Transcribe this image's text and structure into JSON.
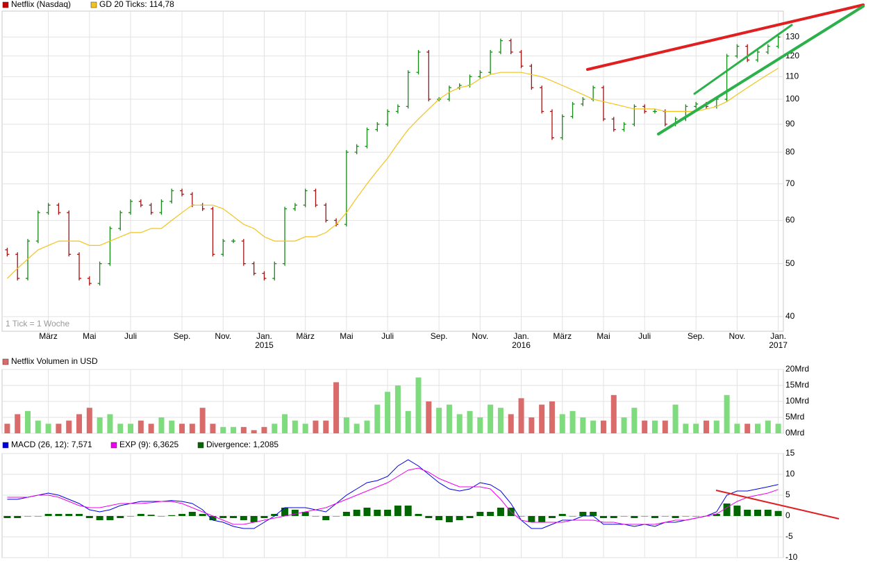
{
  "chart_data": [
    {
      "type": "ohlc",
      "log_scale": true,
      "grid": true,
      "annotation": "1 Tick = 1 Woche",
      "categories": [
        null,
        null,
        null,
        null,
        "März",
        null,
        null,
        null,
        "Mai",
        null,
        null,
        null,
        "Juli",
        null,
        null,
        null,
        null,
        "Sep.",
        null,
        null,
        null,
        "Nov.",
        null,
        null,
        null,
        "Jan.",
        null,
        null,
        null,
        "März",
        null,
        null,
        null,
        "Mai",
        null,
        null,
        null,
        "Juli",
        null,
        null,
        null,
        null,
        "Sep.",
        null,
        null,
        null,
        "Nov.",
        null,
        null,
        null,
        "Jan.",
        null,
        null,
        null,
        "März",
        null,
        null,
        null,
        "Mai",
        null,
        null,
        null,
        "Juli",
        null,
        null,
        null,
        null,
        "Sep.",
        null,
        null,
        null,
        "Nov.",
        null,
        null,
        null,
        "Jan."
      ],
      "years": [
        null,
        null,
        null,
        null,
        null,
        null,
        null,
        null,
        null,
        null,
        null,
        null,
        null,
        null,
        null,
        null,
        null,
        null,
        null,
        null,
        null,
        null,
        null,
        null,
        null,
        "2015",
        null,
        null,
        null,
        null,
        null,
        null,
        null,
        null,
        null,
        null,
        null,
        null,
        null,
        null,
        null,
        null,
        null,
        null,
        null,
        null,
        null,
        null,
        null,
        null,
        "2016",
        null,
        null,
        null,
        null,
        null,
        null,
        null,
        null,
        null,
        null,
        null,
        null,
        null,
        null,
        null,
        null,
        null,
        null,
        null,
        null,
        null,
        null,
        null,
        null,
        "2017"
      ],
      "ylim": [
        37.6,
        145
      ],
      "yticks": [
        40,
        50,
        60,
        70,
        80,
        90,
        100,
        110,
        120,
        130
      ],
      "series": [
        {
          "name": "Netflix (Nasdaq)",
          "color": "#cc0000",
          "up_color": "#138a13",
          "down_color": "#a31010",
          "open": [
            53,
            52,
            47,
            55,
            62,
            64,
            62,
            52,
            47,
            46,
            50,
            58,
            62,
            65,
            64,
            62,
            65,
            68,
            67,
            64,
            63,
            52,
            55,
            55,
            50,
            48,
            47,
            50,
            63,
            64,
            68,
            64,
            60,
            59,
            80,
            82,
            88,
            90,
            95,
            97,
            112,
            122,
            100,
            100,
            105,
            106,
            110,
            112,
            122,
            128,
            122,
            115,
            105,
            95,
            85,
            93,
            98,
            100,
            105,
            92,
            88,
            90,
            97,
            95,
            95,
            90,
            92,
            97,
            98,
            97,
            100,
            120,
            125,
            118,
            122,
            125
          ],
          "close": [
            52,
            47,
            55,
            62,
            64,
            62,
            52,
            47,
            46,
            50,
            58,
            62,
            65,
            64,
            62,
            65,
            68,
            67,
            64,
            63,
            52,
            55,
            55,
            50,
            48,
            47,
            50,
            63,
            64,
            68,
            64,
            60,
            59,
            80,
            82,
            88,
            90,
            95,
            97,
            112,
            122,
            100,
            100,
            105,
            106,
            110,
            112,
            122,
            128,
            122,
            115,
            105,
            95,
            85,
            93,
            98,
            100,
            105,
            92,
            88,
            90,
            97,
            95,
            95,
            90,
            92,
            97,
            98,
            97,
            100,
            120,
            125,
            118,
            122,
            125,
            130
          ]
        },
        {
          "name": "GD 20 Ticks: 114,78",
          "color": "#f2c31c",
          "values": [
            47,
            49,
            51,
            53,
            54,
            55,
            55,
            55,
            54,
            54,
            55,
            56,
            57,
            57,
            58,
            58,
            60,
            62,
            64,
            64,
            64,
            63,
            61,
            59,
            58,
            56,
            55,
            55,
            55,
            56,
            56,
            57,
            59,
            62,
            66,
            70,
            74,
            78,
            83,
            88,
            92,
            96,
            100,
            103,
            105,
            106,
            109,
            111,
            112,
            112,
            112,
            111,
            110,
            108,
            106,
            104,
            102,
            100,
            99,
            98,
            97,
            96,
            96,
            96,
            95,
            95,
            95,
            95,
            96,
            97,
            99,
            102,
            105,
            108,
            111,
            114
          ]
        }
      ]
    },
    {
      "type": "bar",
      "grid": true,
      "ylim": [
        0,
        20
      ],
      "yticks": [
        {
          "value": 0,
          "label": "0Mrd"
        },
        {
          "value": 5,
          "label": "5Mrd"
        },
        {
          "value": 10,
          "label": "10Mrd"
        },
        {
          "value": 15,
          "label": "15Mrd"
        },
        {
          "value": 20,
          "label": "20Mrd"
        }
      ],
      "series": [
        {
          "name": "Netflix Volumen in USD",
          "color": "#d96b6b",
          "up_color": "#7edb7e",
          "down_color": "#d96b6b",
          "values": [
            3,
            6,
            7,
            4,
            3,
            3,
            4,
            6,
            8,
            5,
            6,
            3,
            3,
            4,
            3,
            5,
            4,
            3,
            3,
            8,
            3,
            2,
            2,
            2,
            1,
            2,
            3,
            6,
            4,
            3,
            4,
            4,
            16,
            5,
            3,
            4,
            9,
            13,
            15,
            7,
            17.5,
            10,
            8,
            9,
            6,
            7,
            5,
            9,
            8,
            6,
            11,
            5,
            9,
            10,
            6,
            7,
            5,
            4,
            4,
            12,
            5,
            8,
            4,
            4,
            4,
            9,
            3,
            3,
            4,
            4,
            12,
            3,
            3,
            3,
            4,
            3
          ]
        }
      ]
    },
    {
      "type": "macd",
      "grid": true,
      "ylim": [
        -10,
        15
      ],
      "yticks": [
        -10,
        -5,
        0,
        5,
        10,
        15
      ],
      "series": [
        {
          "name": "MACD (26, 12): 7,571",
          "color": "#0000dd",
          "style": "line",
          "values": [
            4,
            4,
            4.5,
            5,
            5.5,
            5,
            4,
            3,
            1.5,
            1,
            1.5,
            2.5,
            3,
            3.5,
            3.5,
            3.5,
            3.7,
            3.5,
            3,
            1.5,
            -1,
            -1.5,
            -2.5,
            -3,
            -3,
            -1.5,
            0,
            2,
            2,
            2,
            1.5,
            1,
            3,
            5,
            6.5,
            8,
            8.5,
            9.5,
            12,
            13.5,
            12,
            10,
            8,
            6.5,
            6,
            6.5,
            8,
            7.5,
            6,
            3,
            -1,
            -3,
            -3,
            -2,
            -1,
            -1,
            0,
            0,
            -2,
            -2,
            -2,
            -2.5,
            -2,
            -2.5,
            -1.5,
            -1.5,
            -1,
            -0.5,
            0,
            1,
            5,
            6,
            6,
            6.5,
            7,
            7.571
          ]
        },
        {
          "name": "EXP (9): 6,3625",
          "color": "#ee00ee",
          "style": "line",
          "values": [
            4.5,
            4.5,
            4.5,
            5,
            5,
            4.5,
            3.5,
            2.5,
            2,
            2,
            2.5,
            3,
            3,
            3,
            3.2,
            3.5,
            3.5,
            3,
            2,
            1,
            0,
            -1,
            -2,
            -2,
            -1.5,
            -1,
            -0.5,
            0,
            0.5,
            1,
            1.5,
            2,
            3,
            4,
            5,
            6,
            7,
            8,
            9.5,
            11,
            11.5,
            10.5,
            9,
            8,
            7,
            7,
            7,
            6.5,
            4,
            1,
            -1,
            -1.5,
            -1.5,
            -1.5,
            -1.5,
            -1,
            -1,
            -1,
            -1.5,
            -1.5,
            -2,
            -2,
            -2,
            -2,
            -1.5,
            -1,
            -1,
            -0.5,
            0,
            0.5,
            2,
            3.5,
            4.5,
            5,
            5.5,
            6.3625
          ]
        },
        {
          "name": "Divergence: 1,2085",
          "color": "#006600",
          "style": "bar",
          "values": [
            -0.5,
            -0.5,
            0,
            0,
            0.5,
            0.5,
            0.5,
            0.5,
            -0.5,
            -1,
            -1,
            -0.5,
            0,
            0.5,
            0.3,
            0,
            0.2,
            0.5,
            1,
            0.5,
            -1,
            -0.5,
            -0.5,
            -1,
            -1.5,
            -0.5,
            0.5,
            2,
            1.5,
            1,
            0,
            -1,
            0,
            1,
            1.5,
            2,
            1.5,
            1.5,
            2.5,
            2.5,
            0.5,
            -0.5,
            -1,
            -1.5,
            -1,
            -0.5,
            1,
            1,
            2,
            2,
            0,
            -1.5,
            -1.5,
            -0.5,
            0.5,
            0,
            1,
            1,
            -0.5,
            -0.5,
            0,
            -0.5,
            0,
            -0.5,
            0,
            -0.5,
            0,
            0,
            0,
            0.5,
            3,
            2.5,
            1.5,
            1.5,
            1.5,
            1.2085
          ]
        }
      ]
    }
  ]
}
